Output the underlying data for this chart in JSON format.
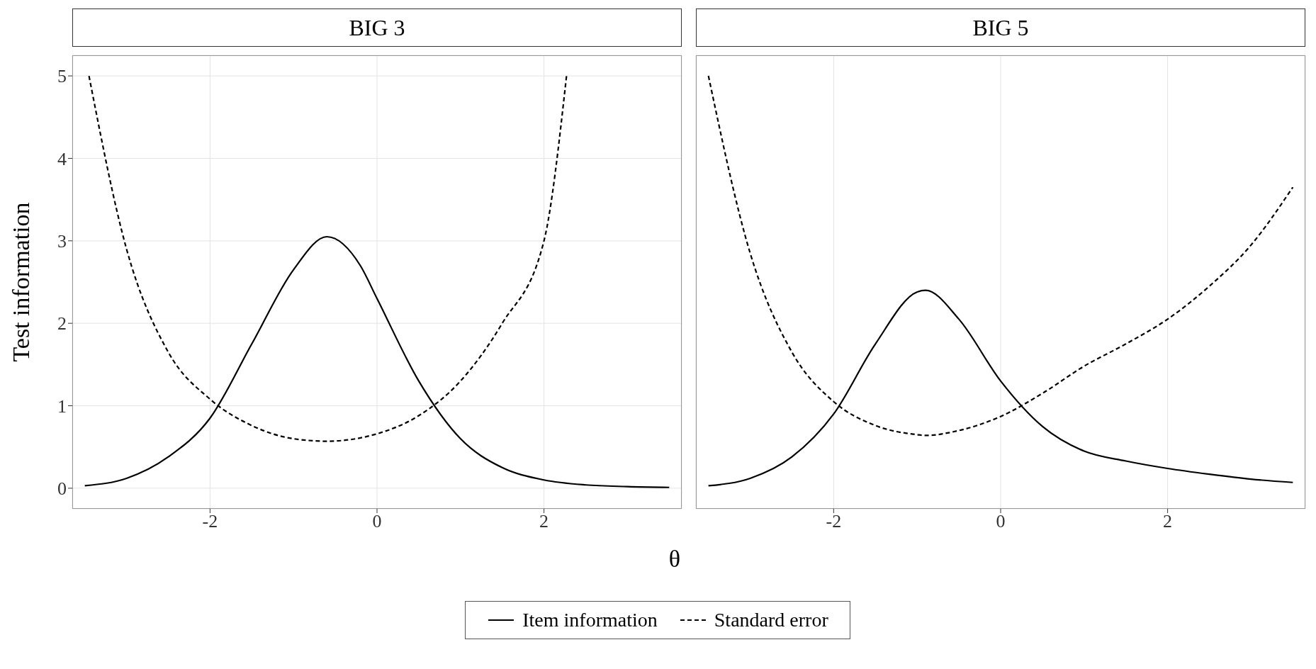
{
  "chart_data": [
    {
      "type": "line",
      "title": "BIG 3",
      "xlabel": "θ",
      "ylabel": "Test information",
      "xlim": [
        -3.65,
        3.65
      ],
      "ylim": [
        -0.25,
        5.25
      ],
      "xticks": [
        -2,
        0,
        2
      ],
      "yticks": [
        0,
        1,
        2,
        3,
        4,
        5
      ],
      "grid": true,
      "legend": "bottom",
      "marker": "none",
      "series": [
        {
          "name": "Item information",
          "color": "#000000",
          "line_style": "solid",
          "x": [
            -3.5,
            -3,
            -2.5,
            -2,
            -1.5,
            -1,
            -0.6,
            -0.2,
            0,
            0.5,
            1,
            1.5,
            2,
            2.5,
            3,
            3.5
          ],
          "values": [
            0.03,
            0.12,
            0.38,
            0.85,
            1.75,
            2.65,
            3.05,
            2.7,
            2.3,
            1.3,
            0.6,
            0.25,
            0.1,
            0.04,
            0.02,
            0.01
          ]
        },
        {
          "name": "Standard error",
          "color": "#000000",
          "line_style": "dashed",
          "x": [
            -3.45,
            -3,
            -2.5,
            -2,
            -1.5,
            -1,
            -0.6,
            0,
            0.5,
            1,
            1.5,
            2,
            2.27
          ],
          "values": [
            5,
            2.9,
            1.65,
            1.08,
            0.76,
            0.6,
            0.57,
            0.66,
            0.88,
            1.3,
            2,
            3,
            5
          ]
        }
      ]
    },
    {
      "type": "line",
      "title": "BIG 5",
      "xlim": [
        -3.65,
        3.65
      ],
      "ylim": [
        -0.25,
        5.25
      ],
      "xticks": [
        -2,
        0,
        2
      ],
      "yticks": [
        0,
        1,
        2,
        3,
        4,
        5
      ],
      "grid": true,
      "tick_labels": "x",
      "marker": "none",
      "series": [
        {
          "color": "#000000",
          "line_style": "solid",
          "x": [
            -3.5,
            -3,
            -2.5,
            -2,
            -1.5,
            -1,
            -0.9,
            -0.5,
            0,
            0.5,
            1,
            1.5,
            2,
            2.5,
            3,
            3.5
          ],
          "values": [
            0.03,
            0.12,
            0.38,
            0.9,
            1.75,
            2.38,
            2.4,
            2.05,
            1.3,
            0.75,
            0.45,
            0.33,
            0.24,
            0.17,
            0.11,
            0.07
          ]
        },
        {
          "color": "#000000",
          "line_style": "dashed",
          "x": [
            -3.5,
            -3,
            -2.5,
            -2,
            -1.5,
            -1,
            -0.9,
            -0.5,
            0,
            0.5,
            1,
            1.5,
            2,
            2.5,
            3,
            3.5
          ],
          "values": [
            5,
            2.85,
            1.65,
            1.05,
            0.76,
            0.65,
            0.64,
            0.7,
            0.87,
            1.15,
            1.48,
            1.75,
            2.05,
            2.45,
            2.95,
            3.65
          ]
        }
      ]
    }
  ]
}
